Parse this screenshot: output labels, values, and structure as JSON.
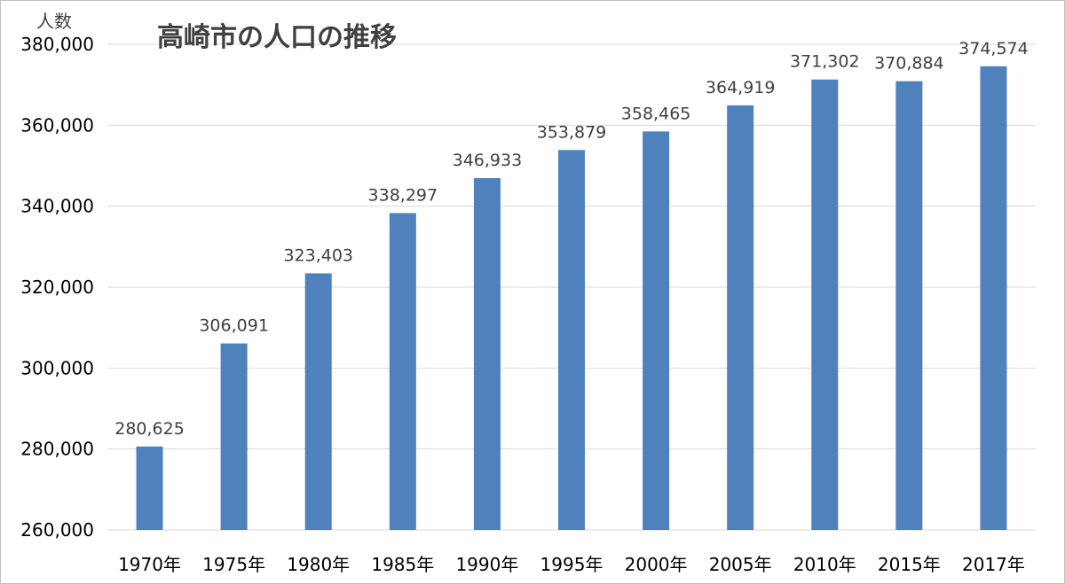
{
  "chart_data": {
    "type": "bar",
    "title": "高崎市の人口の推移",
    "ylabel": "人数",
    "xlabel": "",
    "categories": [
      "1970年",
      "1975年",
      "1980年",
      "1985年",
      "1990年",
      "1995年",
      "2000年",
      "2005年",
      "2010年",
      "2015年",
      "2017年"
    ],
    "values": [
      280625,
      306091,
      323403,
      338297,
      346933,
      353879,
      358465,
      364919,
      371302,
      370884,
      374574
    ],
    "data_labels": [
      "280,625",
      "306,091",
      "323,403",
      "338,297",
      "346,933",
      "353,879",
      "358,465",
      "364,919",
      "371,302",
      "370,884",
      "374,574"
    ],
    "ylim": [
      260000,
      380000
    ],
    "yticks": [
      260000,
      280000,
      300000,
      320000,
      340000,
      360000,
      380000
    ],
    "ytick_labels": [
      "260,000",
      "280,000",
      "300,000",
      "320,000",
      "340,000",
      "360,000",
      "380,000"
    ],
    "grid": true,
    "legend": "none",
    "bar_color": "#4f81bd",
    "grid_color": "#d9d9d9"
  }
}
